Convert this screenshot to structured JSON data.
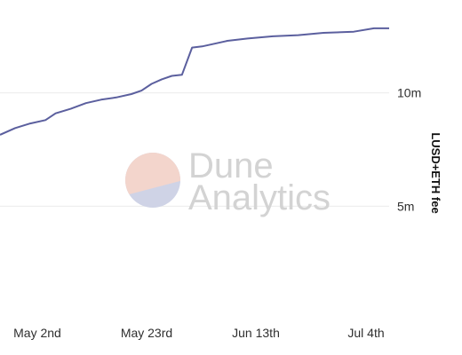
{
  "chart_data": {
    "type": "line",
    "title": "",
    "xlabel": "",
    "ylabel": "LUSD+ETH fee",
    "y_axis_side": "right",
    "grid": "horizontal",
    "legend": "none",
    "x_ticks": [
      "May 2nd",
      "May 23rd",
      "Jun 13th",
      "Jul 4th"
    ],
    "y_ticks": [
      {
        "value": 5000000,
        "label": "5m"
      },
      {
        "value": 10000000,
        "label": "10m"
      }
    ],
    "series": [
      {
        "color": "#5b5f9e",
        "x": [
          "2021-04-22",
          "2021-04-25",
          "2021-04-28",
          "2021-05-01",
          "2021-05-03",
          "2021-05-06",
          "2021-05-09",
          "2021-05-12",
          "2021-05-15",
          "2021-05-18",
          "2021-05-20",
          "2021-05-22",
          "2021-05-24",
          "2021-05-26",
          "2021-05-28",
          "2021-05-30",
          "2021-06-01",
          "2021-06-03",
          "2021-06-06",
          "2021-06-10",
          "2021-06-15",
          "2021-06-20",
          "2021-06-25",
          "2021-07-01",
          "2021-07-05",
          "2021-07-08"
        ],
        "y": [
          8150000,
          8450000,
          8650000,
          8800000,
          9100000,
          9300000,
          9550000,
          9700000,
          9800000,
          9950000,
          10100000,
          10400000,
          10600000,
          10750000,
          10800000,
          12000000,
          12050000,
          12150000,
          12300000,
          12400000,
          12500000,
          12550000,
          12650000,
          12700000,
          12850000,
          12850000
        ]
      }
    ],
    "ylim": [
      0,
      14100000
    ],
    "xlim": [
      "2021-04-22",
      "2021-07-08"
    ]
  },
  "watermark": {
    "line1": "Dune",
    "line2": "Analytics",
    "colors": [
      "#f3d5cc",
      "#cfd3e6"
    ]
  }
}
